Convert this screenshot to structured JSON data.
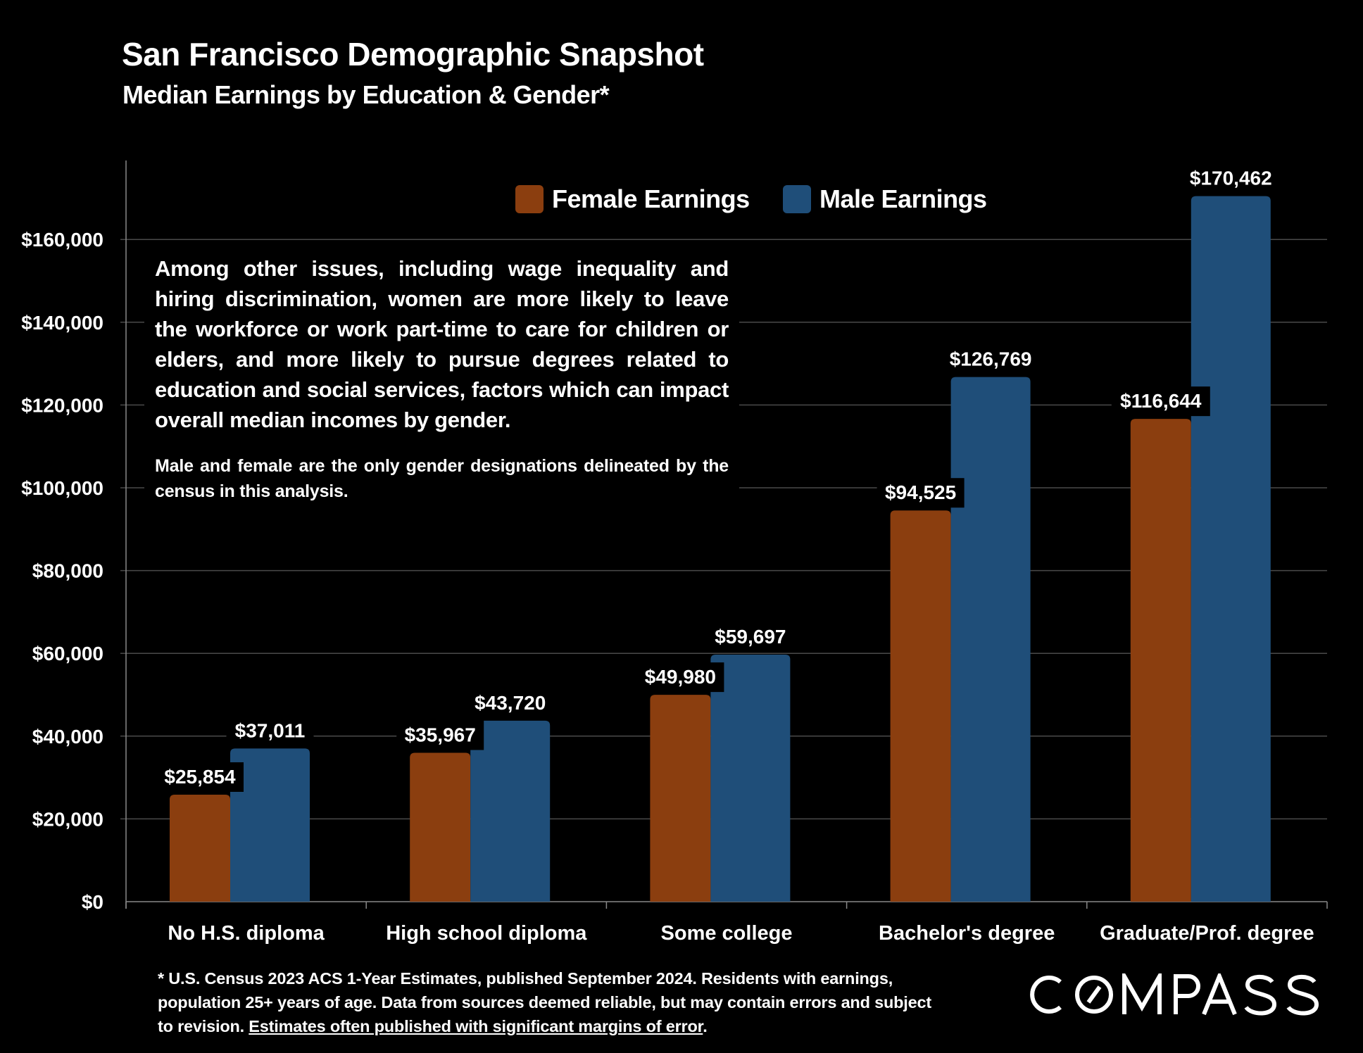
{
  "title": "San Francisco Demographic Snapshot",
  "subtitle": "Median Earnings by Education & Gender*",
  "note": {
    "paragraph1": "Among other issues, including wage inequality and hiring discrimination, women are more likely to leave the workforce or work part-time to care for children or elders, and more likely to pursue degrees related to education and social services, factors which can impact overall median incomes by gender.",
    "paragraph2": "Male and female are the only gender designations delineated by the census in this analysis."
  },
  "footer": {
    "text": "* U.S. Census 2023 ACS 1-Year Estimates, published September 2024. Residents with earnings, population 25+ years of age. Data from sources deemed reliable, but may contain errors and subject to revision. ",
    "link": "Estimates often published with significant margins of error",
    "end": "."
  },
  "logo": "COMPASS",
  "chart_data": {
    "type": "bar",
    "categories": [
      "No H.S. diploma",
      "High school diploma",
      "Some college",
      "Bachelor's degree",
      "Graduate/Prof. degree"
    ],
    "series": [
      {
        "name": "Female Earnings",
        "color": "#8B3E0F",
        "values": [
          25854,
          35967,
          49980,
          94525,
          116644
        ],
        "labels": [
          "$25,854",
          "$35,967",
          "$49,980",
          "$94,525",
          "$116,644"
        ]
      },
      {
        "name": "Male Earnings",
        "color": "#1F4E79",
        "values": [
          37011,
          43720,
          59697,
          126769,
          170462
        ],
        "labels": [
          "$37,011",
          "$43,720",
          "$59,697",
          "$126,769",
          "$170,462"
        ]
      }
    ],
    "ylim": [
      0,
      180000
    ],
    "yticks": [
      0,
      20000,
      40000,
      60000,
      80000,
      100000,
      120000,
      140000,
      160000
    ],
    "ytick_labels": [
      "$0",
      "$20,000",
      "$40,000",
      "$60,000",
      "$80,000",
      "$100,000",
      "$120,000",
      "$140,000",
      "$160,000"
    ],
    "grid": true,
    "legend_position": "top-center"
  }
}
